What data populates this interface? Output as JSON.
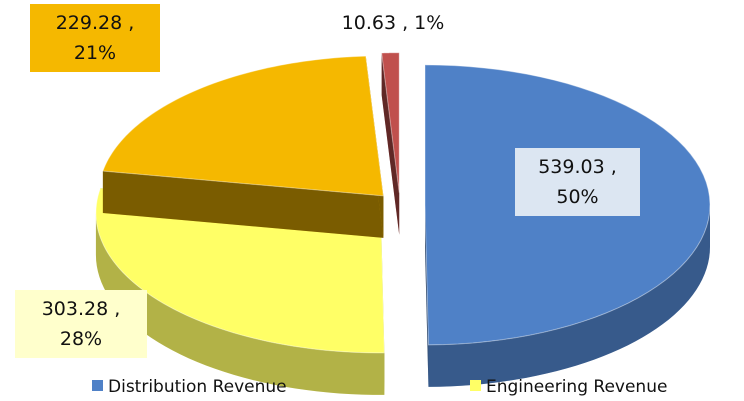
{
  "chart_data": {
    "type": "pie",
    "categories": [
      "Distribution Revenue",
      "Engineering Revenue",
      null,
      null
    ],
    "values": [
      539.03,
      303.28,
      229.28,
      10.63
    ],
    "value_labels": [
      "539.03 , 50%",
      "303.28 , 28%",
      "229.28 , 21%",
      "10.63 , 1%"
    ],
    "colors": [
      "#4f81c7",
      "#ffff66",
      "#f5b800",
      "#c0504d"
    ],
    "legend": "bottom"
  }
}
